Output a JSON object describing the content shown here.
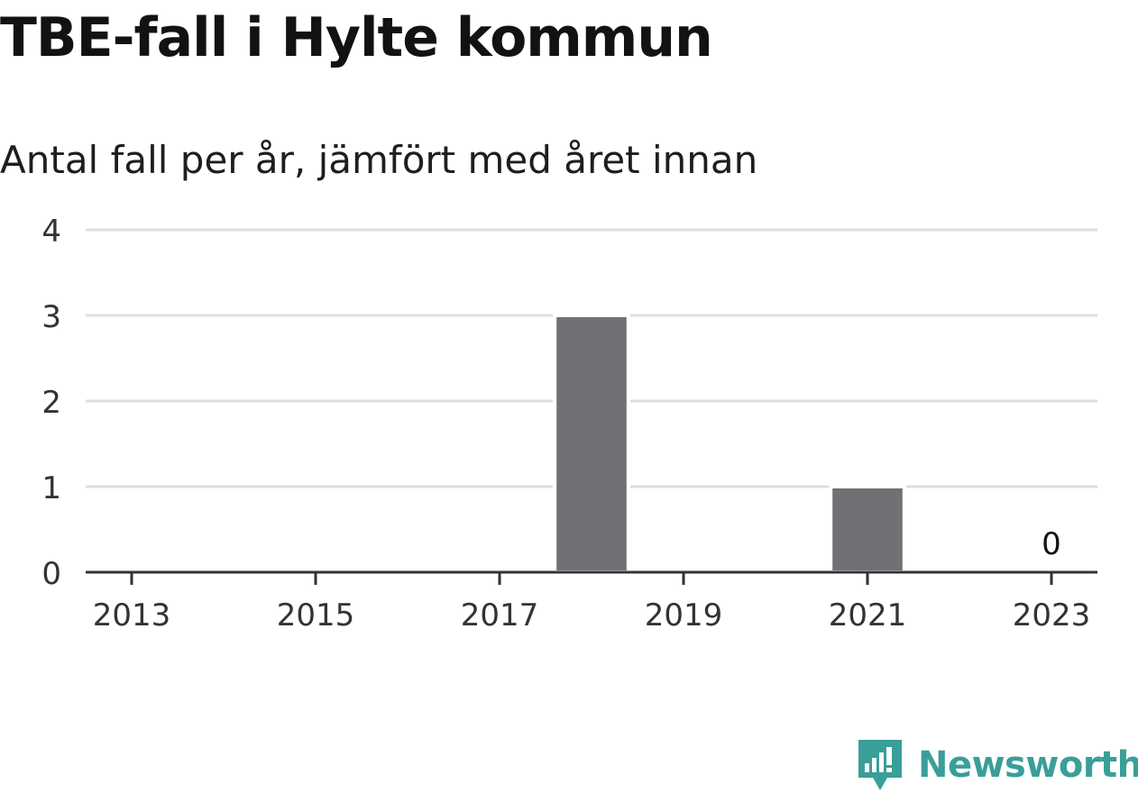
{
  "header": {
    "title": "TBE-fall i Hylte kommun",
    "subtitle": "Antal fall per år, jämfört med året innan"
  },
  "chart_data": {
    "type": "bar",
    "title": "TBE-fall i Hylte kommun",
    "subtitle": "Antal fall per år, jämfört med året innan",
    "x": [
      2013,
      2014,
      2015,
      2016,
      2017,
      2018,
      2019,
      2020,
      2021,
      2022,
      2023
    ],
    "values": [
      0,
      0,
      0,
      0,
      0,
      3,
      0,
      0,
      1,
      0,
      0
    ],
    "xticks": [
      "2013",
      "2015",
      "2017",
      "2019",
      "2021",
      "2023"
    ],
    "yticks": [
      "0",
      "1",
      "2",
      "3",
      "4"
    ],
    "ylim": [
      0,
      4
    ],
    "grid": true,
    "bar_color": "#717075",
    "annotations": [
      {
        "x": 2023,
        "text": "0"
      }
    ]
  },
  "brand": {
    "name": "Newsworthy",
    "icon": "newsworthy-logo-icon",
    "color": "#3a9e99"
  }
}
